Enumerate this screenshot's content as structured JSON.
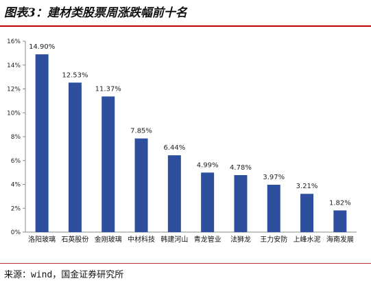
{
  "header": {
    "title": "图表3：建材类股票周涨跌幅前十名"
  },
  "footer": {
    "source": "来源：wind，国金证券研究所"
  },
  "colors": {
    "bar": "#2e4f9e",
    "rule": "#c00000"
  },
  "chart_data": {
    "type": "bar",
    "categories": [
      "洛阳玻璃",
      "石英股份",
      "金刚玻璃",
      "中材科技",
      "韩建河山",
      "青龙管业",
      "法狮龙",
      "王力安防",
      "上峰水泥",
      "海南发展"
    ],
    "values": [
      14.9,
      12.53,
      11.37,
      7.85,
      6.44,
      4.99,
      4.78,
      3.97,
      3.21,
      1.82
    ],
    "data_labels": [
      "14.90%",
      "12.53%",
      "11.37%",
      "7.85%",
      "6.44%",
      "4.99%",
      "4.78%",
      "3.97%",
      "3.21%",
      "1.82%"
    ],
    "ylim": [
      0,
      16
    ],
    "yticks": [
      "0%",
      "2%",
      "4%",
      "6%",
      "8%",
      "10%",
      "12%",
      "14%",
      "16%"
    ],
    "grid": false,
    "legend": "none"
  }
}
